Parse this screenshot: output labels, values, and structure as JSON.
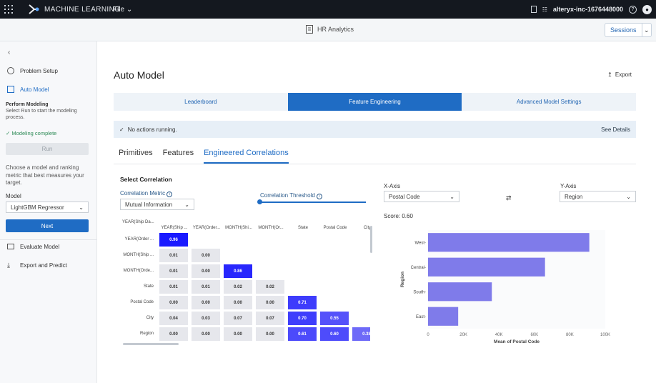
{
  "topbar": {
    "app_title": "MACHINE LEARNING",
    "file_menu": "File",
    "account": "alteryx-inc-1676448000"
  },
  "subbar": {
    "project_name": "HR Analytics",
    "sessions_label": "Sessions"
  },
  "sidebar": {
    "problem_setup": "Problem Setup",
    "auto_model": "Auto Model",
    "perform_title": "Perform Modeling",
    "perform_desc": "Select Run to start the modeling process.",
    "modeling_complete": "Modeling complete",
    "run_label": "Run",
    "choose_text": "Choose a model and ranking metric that best measures your target.",
    "model_label": "Model",
    "model_value": "LightGBM Regressor",
    "next_label": "Next",
    "evaluate_model": "Evaluate Model",
    "export_predict": "Export and Predict"
  },
  "main": {
    "title": "Auto Model",
    "export_label": "Export",
    "tabs": [
      "Leaderboard",
      "Feature Engineering",
      "Advanced Model Settings"
    ],
    "status_text": "No actions running.",
    "see_details": "See Details",
    "subtabs": [
      "Primitives",
      "Features",
      "Engineered Correlations"
    ]
  },
  "correlation": {
    "title": "Select Correlation",
    "metric_label": "Correlation Metric",
    "metric_value": "Mutual Information",
    "threshold_label": "Correlation Threshold",
    "threshold_value": 0,
    "corner_label": "YEAR(Ship Da...",
    "columns": [
      "YEAR(Ship ...",
      "YEAR(Order...",
      "MONTH(Shi...",
      "MONTH(Or...",
      "State",
      "Postal Code",
      "City"
    ],
    "rows": [
      {
        "label": "YEAR(Order ...",
        "values": [
          "0.96"
        ]
      },
      {
        "label": "MONTH(Ship ...",
        "values": [
          "0.01",
          "0.00"
        ]
      },
      {
        "label": "MONTH(Orde...",
        "values": [
          "0.01",
          "0.00",
          "0.86"
        ]
      },
      {
        "label": "State",
        "values": [
          "0.01",
          "0.01",
          "0.02",
          "0.02"
        ]
      },
      {
        "label": "Postal Code",
        "values": [
          "0.00",
          "0.00",
          "0.00",
          "0.00",
          "0.71"
        ]
      },
      {
        "label": "City",
        "values": [
          "0.04",
          "0.03",
          "0.07",
          "0.07",
          "0.70",
          "0.55"
        ]
      },
      {
        "label": "Region",
        "values": [
          "0.00",
          "0.00",
          "0.00",
          "0.00",
          "0.61",
          "0.60",
          "0.38"
        ]
      }
    ]
  },
  "axes": {
    "x_label": "X-Axis",
    "x_value": "Postal Code",
    "y_label": "Y-Axis",
    "y_value": "Region",
    "score": "Score: 0.60"
  },
  "chart_data": {
    "type": "bar",
    "orientation": "horizontal",
    "categories": [
      "West",
      "Central",
      "South",
      "East"
    ],
    "values": [
      91000,
      66000,
      36000,
      17000
    ],
    "xlabel": "Mean of Postal Code",
    "ylabel": "Region",
    "xlim": [
      0,
      100000
    ],
    "xticks": [
      "0",
      "20K",
      "40K",
      "60K",
      "80K",
      "100K"
    ],
    "bar_color": "#7f7bea"
  }
}
